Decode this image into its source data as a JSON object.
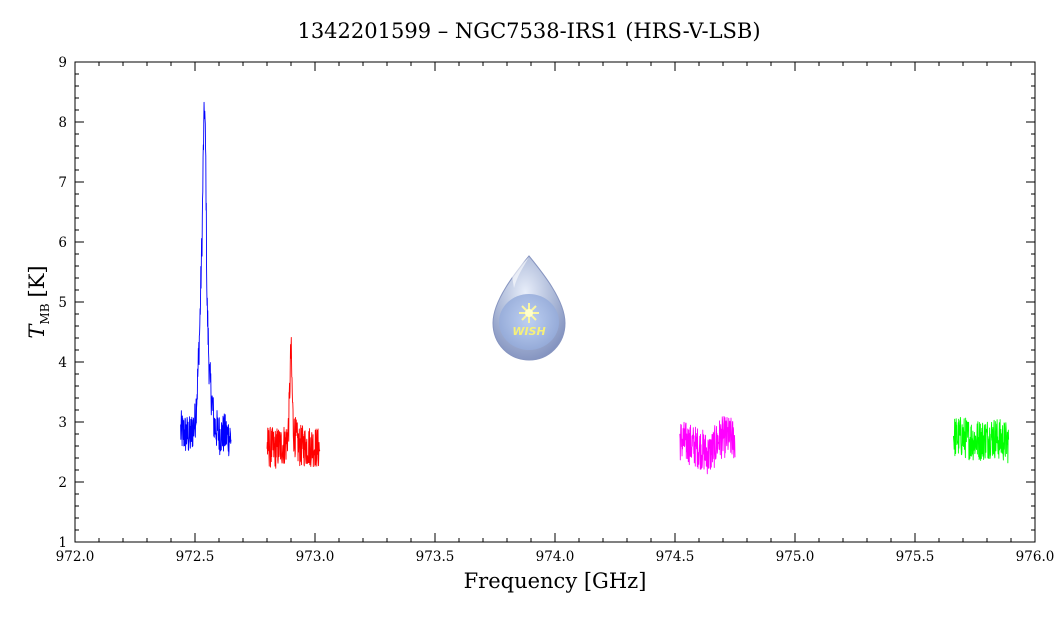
{
  "chart_data": {
    "type": "line",
    "title": "1342201599 – NGC7538-IRS1 (HRS-V-LSB)",
    "xlabel": "Frequency [GHz]",
    "ylabel": "T",
    "ylabel_subscript": "MB",
    "ylabel_unit": "[K]",
    "xlim": [
      972.0,
      976.0
    ],
    "ylim": [
      1,
      9
    ],
    "x_ticks": [
      "972.0",
      "972.5",
      "973.0",
      "973.5",
      "974.0",
      "974.5",
      "975.0",
      "975.5",
      "976.0"
    ],
    "y_ticks": [
      "1",
      "2",
      "3",
      "4",
      "5",
      "6",
      "7",
      "8",
      "9"
    ],
    "grid": false,
    "legend": "none",
    "logo_text": "WISH",
    "series": [
      {
        "color": "#0000ff",
        "x": [
          972.44,
          972.46,
          972.48,
          972.5,
          972.51,
          972.52,
          972.53,
          972.535,
          972.54,
          972.545,
          972.55,
          972.56,
          972.58,
          972.6,
          972.62,
          972.65
        ],
        "y": [
          2.85,
          2.8,
          2.75,
          3.0,
          3.6,
          4.6,
          6.2,
          7.6,
          8.3,
          7.3,
          5.0,
          3.8,
          2.95,
          2.8,
          2.8,
          2.75
        ]
      },
      {
        "color": "#ff0000",
        "x": [
          972.8,
          972.83,
          972.86,
          972.88,
          972.89,
          972.895,
          972.9,
          972.905,
          972.91,
          972.93,
          972.96,
          972.99,
          973.02
        ],
        "y": [
          2.6,
          2.55,
          2.6,
          2.65,
          2.9,
          3.6,
          4.25,
          3.5,
          2.85,
          2.6,
          2.6,
          2.6,
          2.55
        ]
      },
      {
        "color": "#ff00ff",
        "x": [
          974.52,
          974.55,
          974.58,
          974.61,
          974.64,
          974.66,
          974.68,
          974.7,
          974.72,
          974.75
        ],
        "y": [
          2.7,
          2.65,
          2.6,
          2.55,
          2.45,
          2.55,
          2.7,
          2.75,
          2.75,
          2.7
        ]
      },
      {
        "color": "#00ff00",
        "x": [
          975.66,
          975.7,
          975.74,
          975.78,
          975.82,
          975.86,
          975.89
        ],
        "y": [
          2.75,
          2.75,
          2.7,
          2.7,
          2.75,
          2.7,
          2.65
        ]
      }
    ]
  }
}
